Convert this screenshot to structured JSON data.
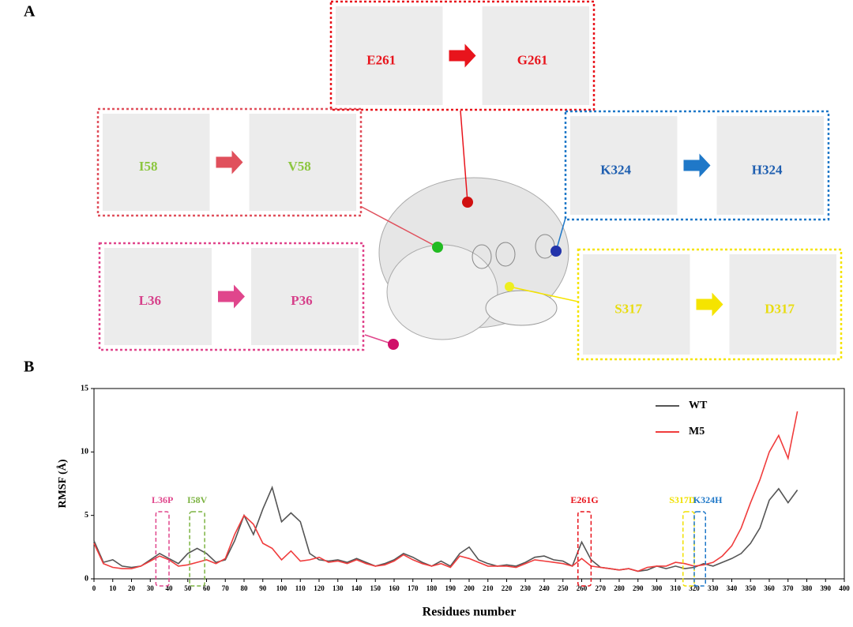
{
  "panel_a": {
    "label": "A",
    "insets": [
      {
        "from": "E261",
        "to": "G261",
        "color": "#e8141c",
        "label_color": "#e8141c"
      },
      {
        "from": "I58",
        "to": "V58",
        "color": "#e0505c",
        "label_color": "#8cc63f"
      },
      {
        "from": "K324",
        "to": "H324",
        "color": "#1f78c8",
        "label_color": "#1f5fb0"
      },
      {
        "from": "L36",
        "to": "P36",
        "color": "#e0468c",
        "label_color": "#d6408a"
      },
      {
        "from": "S317",
        "to": "D317",
        "color": "#f5e400",
        "label_color": "#e8dc10"
      }
    ]
  },
  "chart_data": {
    "type": "line",
    "panel_label": "B",
    "x_label": "Residues number",
    "y_label": "RMSF (Å)",
    "x": [
      0,
      5,
      10,
      15,
      20,
      25,
      30,
      35,
      40,
      45,
      50,
      55,
      60,
      65,
      70,
      75,
      80,
      85,
      90,
      95,
      100,
      105,
      110,
      115,
      120,
      125,
      130,
      135,
      140,
      145,
      150,
      155,
      160,
      165,
      170,
      175,
      180,
      185,
      190,
      195,
      200,
      205,
      210,
      215,
      220,
      225,
      230,
      235,
      240,
      245,
      250,
      255,
      260,
      265,
      270,
      275,
      280,
      285,
      290,
      295,
      300,
      305,
      310,
      315,
      320,
      325,
      330,
      335,
      340,
      345,
      350,
      355,
      360,
      365,
      370,
      375
    ],
    "series": [
      {
        "name": "WT",
        "color": "#555555",
        "values": [
          3.0,
          1.3,
          1.5,
          1.0,
          0.9,
          1.0,
          1.5,
          2.0,
          1.6,
          1.2,
          2.0,
          2.4,
          2.0,
          1.3,
          1.5,
          3.0,
          5.0,
          3.5,
          5.5,
          7.2,
          4.5,
          5.2,
          4.5,
          2.0,
          1.5,
          1.4,
          1.5,
          1.3,
          1.6,
          1.3,
          1.0,
          1.2,
          1.5,
          2.0,
          1.7,
          1.3,
          1.0,
          1.4,
          1.0,
          2.0,
          2.5,
          1.5,
          1.2,
          1.0,
          1.1,
          1.0,
          1.3,
          1.7,
          1.8,
          1.5,
          1.4,
          1.0,
          2.9,
          1.5,
          0.9,
          0.8,
          0.7,
          0.8,
          0.6,
          0.7,
          1.0,
          0.8,
          1.0,
          0.8,
          0.9,
          1.2,
          1.0,
          1.3,
          1.6,
          2.0,
          2.8,
          4.0,
          6.2,
          7.1,
          6.0,
          7.0
        ]
      },
      {
        "name": "M5",
        "color": "#f03c3c",
        "values": [
          2.8,
          1.2,
          0.9,
          0.8,
          0.8,
          1.0,
          1.4,
          1.8,
          1.5,
          1.0,
          1.1,
          1.3,
          1.5,
          1.2,
          1.6,
          3.5,
          5.0,
          4.3,
          2.8,
          2.4,
          1.5,
          2.2,
          1.4,
          1.5,
          1.7,
          1.3,
          1.4,
          1.2,
          1.5,
          1.2,
          1.0,
          1.1,
          1.4,
          1.9,
          1.5,
          1.2,
          1.0,
          1.2,
          0.9,
          1.8,
          1.6,
          1.3,
          1.0,
          1.0,
          1.0,
          0.9,
          1.2,
          1.5,
          1.4,
          1.3,
          1.2,
          1.0,
          1.6,
          1.0,
          0.9,
          0.8,
          0.7,
          0.8,
          0.6,
          0.9,
          1.0,
          1.0,
          1.3,
          1.2,
          1.0,
          1.1,
          1.3,
          1.8,
          2.6,
          4.0,
          6.0,
          7.8,
          10.0,
          11.3,
          9.5,
          13.2
        ]
      }
    ],
    "highlights": [
      {
        "label": "L36P",
        "start": 33,
        "end": 40,
        "color": "#e0468c"
      },
      {
        "label": "I58V",
        "start": 51,
        "end": 59,
        "color": "#7cb342"
      },
      {
        "label": "E261G",
        "start": 258,
        "end": 265,
        "color": "#e8141c"
      },
      {
        "label": "S317D",
        "start": 314,
        "end": 320,
        "color": "#f0e000"
      },
      {
        "label": "K324H",
        "start": 320,
        "end": 326,
        "color": "#1f78c8"
      }
    ],
    "xlim": [
      0,
      400
    ],
    "xticks": [
      0,
      10,
      20,
      30,
      40,
      50,
      60,
      70,
      80,
      90,
      100,
      110,
      120,
      130,
      140,
      150,
      160,
      170,
      180,
      190,
      200,
      210,
      220,
      230,
      240,
      250,
      260,
      270,
      280,
      290,
      300,
      310,
      320,
      330,
      340,
      350,
      360,
      370,
      380,
      390,
      400
    ],
    "ylim": [
      0,
      15
    ],
    "yticks": [
      0,
      5,
      10,
      15
    ]
  }
}
